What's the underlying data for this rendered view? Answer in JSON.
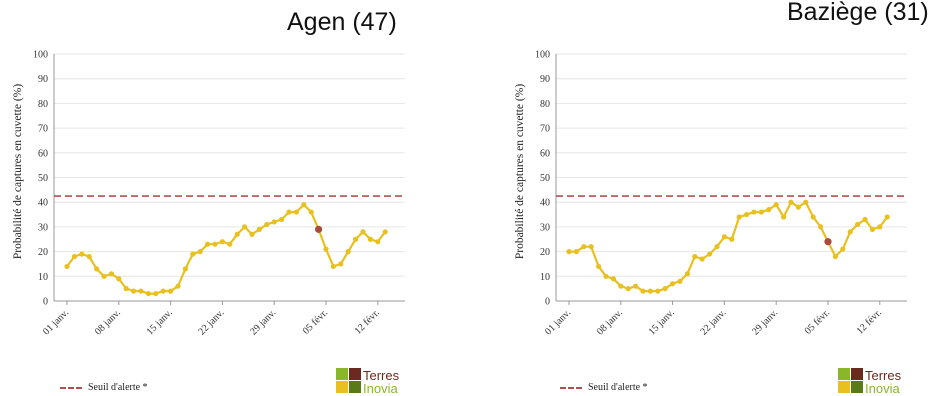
{
  "chart_data": [
    {
      "type": "line",
      "title": "Agen (47)",
      "ylabel": "Probabilité de captures en cuvette (%)",
      "ylim": [
        0,
        100
      ],
      "yticks": [
        0,
        10,
        20,
        30,
        40,
        50,
        60,
        70,
        80,
        90,
        100
      ],
      "xticks": [
        "01 janv.",
        "08 janv.",
        "15 janv.",
        "22 janv.",
        "29 janv.",
        "05 févr.",
        "12 févr."
      ],
      "xtick_day_index": [
        0,
        7,
        14,
        21,
        28,
        35,
        42
      ],
      "threshold": 42.5,
      "legend": "Seuil d'alerte *",
      "line_color": "#e8c020",
      "threshold_color": "#b05050",
      "highlight_color": "#a84a3c",
      "highlight_index": 34,
      "values": [
        14,
        18,
        19,
        18,
        13,
        10,
        11,
        9,
        5,
        4,
        4,
        3,
        3,
        4,
        4,
        6,
        13,
        19,
        20,
        23,
        23,
        24,
        23,
        27,
        30,
        27,
        29,
        31,
        32,
        33,
        36,
        36,
        39,
        36,
        29,
        21,
        14,
        15,
        20,
        25,
        28,
        25,
        24,
        28
      ]
    },
    {
      "type": "line",
      "title": "Baziège (31)",
      "ylabel": "Probabilité de captures en cuvette (%)",
      "ylim": [
        0,
        100
      ],
      "yticks": [
        0,
        10,
        20,
        30,
        40,
        50,
        60,
        70,
        80,
        90,
        100
      ],
      "xticks": [
        "01 janv.",
        "08 janv.",
        "15 janv.",
        "22 janv.",
        "29 janv.",
        "05 févr.",
        "12 févr."
      ],
      "xtick_day_index": [
        0,
        7,
        14,
        21,
        28,
        35,
        42
      ],
      "threshold": 42.5,
      "legend": "Seuil d'alerte *",
      "line_color": "#e8c020",
      "threshold_color": "#b05050",
      "highlight_color": "#a84a3c",
      "highlight_index": 35,
      "values": [
        20,
        20,
        22,
        22,
        14,
        10,
        9,
        6,
        5,
        6,
        4,
        4,
        4,
        5,
        7,
        8,
        11,
        18,
        17,
        19,
        22,
        26,
        25,
        34,
        35,
        36,
        36,
        37,
        39,
        34,
        40,
        38,
        40,
        34,
        30,
        24,
        18,
        21,
        28,
        31,
        33,
        29,
        30,
        34
      ]
    }
  ],
  "logo": {
    "line1": "Terres",
    "line2": "Inovia"
  }
}
